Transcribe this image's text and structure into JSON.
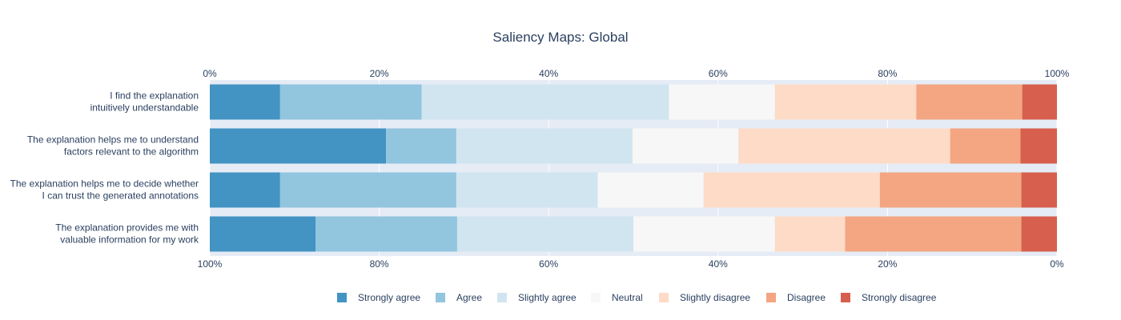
{
  "chart_data": {
    "type": "bar",
    "orientation": "horizontal-stacked-percent",
    "title": "Saliency Maps: Global",
    "categories": [
      [
        "I find the explanation",
        "intuitively understandable"
      ],
      [
        "The explanation helps me to understand",
        "factors relevant to the algorithm"
      ],
      [
        "The explanation helps me to decide whether",
        "I can trust the generated annotations"
      ],
      [
        "The explanation provides me with",
        "valuable information for my work"
      ]
    ],
    "series": [
      {
        "name": "Strongly agree",
        "color": "#4393c3",
        "values": [
          8.3,
          20.8,
          8.3,
          12.5
        ]
      },
      {
        "name": "Agree",
        "color": "#92c5de",
        "values": [
          16.7,
          8.3,
          20.8,
          16.7
        ]
      },
      {
        "name": "Slightly agree",
        "color": "#d1e5f0",
        "values": [
          29.2,
          20.8,
          16.7,
          20.8
        ]
      },
      {
        "name": "Neutral",
        "color": "#f7f7f7",
        "values": [
          12.5,
          12.5,
          12.5,
          16.7
        ]
      },
      {
        "name": "Slightly disagree",
        "color": "#fddbc7",
        "values": [
          16.7,
          25.0,
          20.8,
          8.3
        ]
      },
      {
        "name": "Disagree",
        "color": "#f4a582",
        "values": [
          12.5,
          8.3,
          16.7,
          20.8
        ]
      },
      {
        "name": "Strongly disagree",
        "color": "#d6604d",
        "values": [
          4.1,
          4.3,
          4.2,
          4.2
        ]
      }
    ],
    "xlim": [
      0,
      100
    ],
    "top_ticks": [
      "0%",
      "20%",
      "40%",
      "60%",
      "80%",
      "100%"
    ],
    "bottom_ticks": [
      "100%",
      "80%",
      "60%",
      "40%",
      "20%",
      "0%"
    ],
    "grid": true,
    "legend_position": "bottom",
    "plot_background": "#e5ecf6"
  }
}
